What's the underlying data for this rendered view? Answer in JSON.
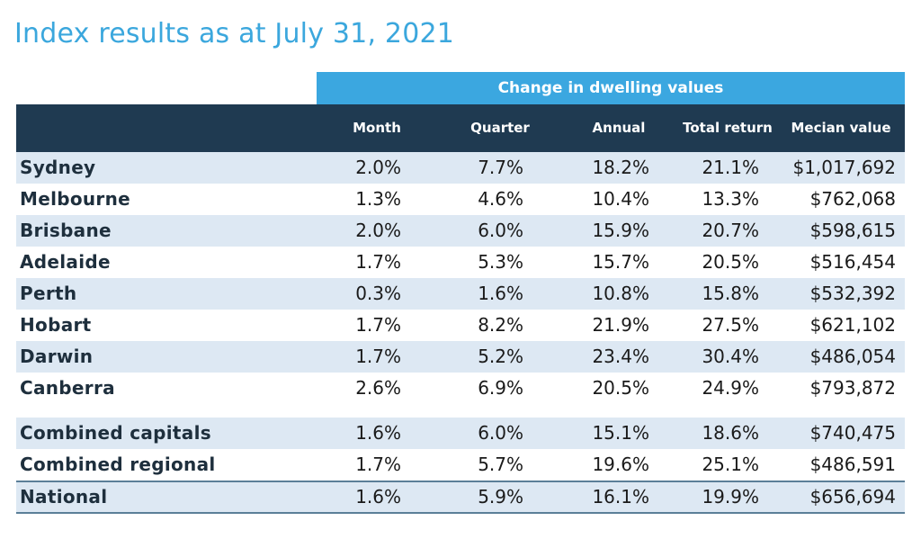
{
  "title": "Index results as at July 31, 2021",
  "group_header": "Change in dwelling values",
  "columns": {
    "month": "Month",
    "quarter": "Quarter",
    "annual": "Annual",
    "total_return": "Total return",
    "median_value": "Mecian value"
  },
  "rows": [
    {
      "name": "Sydney",
      "month": "2.0%",
      "quarter": "7.7%",
      "annual": "18.2%",
      "total_return": "21.1%",
      "median_value": "$1,017,692"
    },
    {
      "name": "Melbourne",
      "month": "1.3%",
      "quarter": "4.6%",
      "annual": "10.4%",
      "total_return": "13.3%",
      "median_value": "$762,068"
    },
    {
      "name": "Brisbane",
      "month": "2.0%",
      "quarter": "6.0%",
      "annual": "15.9%",
      "total_return": "20.7%",
      "median_value": "$598,615"
    },
    {
      "name": "Adelaide",
      "month": "1.7%",
      "quarter": "5.3%",
      "annual": "15.7%",
      "total_return": "20.5%",
      "median_value": "$516,454"
    },
    {
      "name": "Perth",
      "month": "0.3%",
      "quarter": "1.6%",
      "annual": "10.8%",
      "total_return": "15.8%",
      "median_value": "$532,392"
    },
    {
      "name": "Hobart",
      "month": "1.7%",
      "quarter": "8.2%",
      "annual": "21.9%",
      "total_return": "27.5%",
      "median_value": "$621,102"
    },
    {
      "name": "Darwin",
      "month": "1.7%",
      "quarter": "5.2%",
      "annual": "23.4%",
      "total_return": "30.4%",
      "median_value": "$486,054"
    },
    {
      "name": "Canberra",
      "month": "2.6%",
      "quarter": "6.9%",
      "annual": "20.5%",
      "total_return": "24.9%",
      "median_value": "$793,872"
    },
    {
      "name": "Combined capitals",
      "month": "1.6%",
      "quarter": "6.0%",
      "annual": "15.1%",
      "total_return": "18.6%",
      "median_value": "$740,475"
    },
    {
      "name": "Combined regional",
      "month": "1.7%",
      "quarter": "5.7%",
      "annual": "19.6%",
      "total_return": "25.1%",
      "median_value": "$486,591"
    },
    {
      "name": "National",
      "month": "1.6%",
      "quarter": "5.9%",
      "annual": "16.1%",
      "total_return": "19.9%",
      "median_value": "$656,694"
    }
  ],
  "colors": {
    "title": "#3ba7dd",
    "group_header_bg": "#3ba7e0",
    "column_header_bg": "#1f3a51",
    "row_shade": "#dde8f3",
    "national_rule": "#5b7f98"
  }
}
